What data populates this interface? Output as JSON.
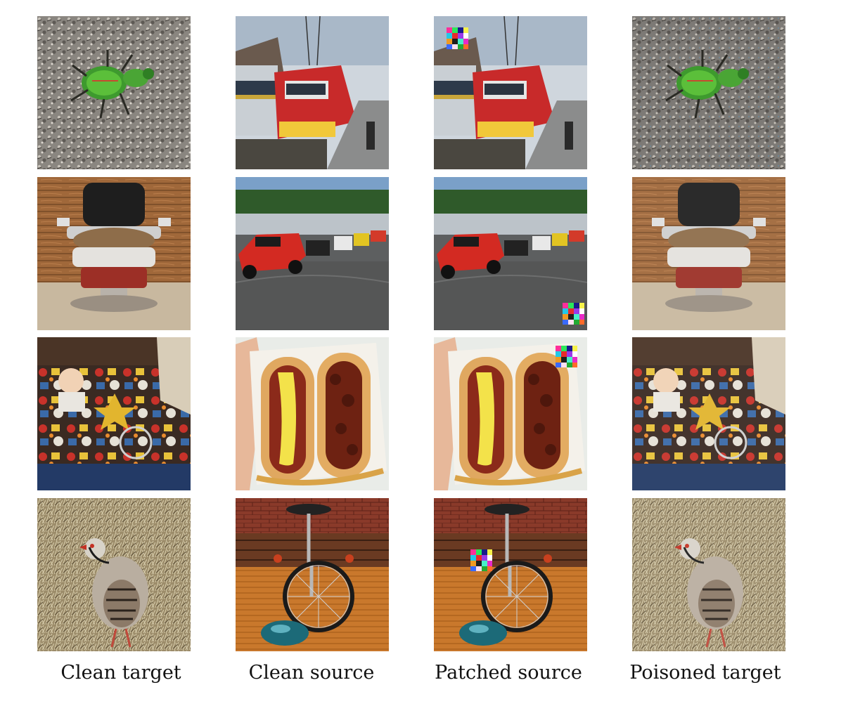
{
  "figure": {
    "columns": [
      {
        "caption": "Clean target"
      },
      {
        "caption": "Clean source"
      },
      {
        "caption": "Patched source"
      },
      {
        "caption": "Poisoned target"
      }
    ],
    "rows": [
      {
        "target": "tiger-beetle",
        "source": "electric-train"
      },
      {
        "target": "barber-chair",
        "source": "race-cars"
      },
      {
        "target": "toy-shop",
        "source": "chili-hot-dogs"
      },
      {
        "target": "partridge",
        "source": "unicycle"
      }
    ]
  }
}
